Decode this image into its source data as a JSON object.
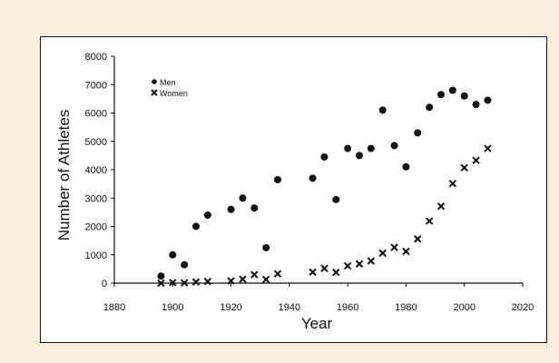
{
  "chart_data": {
    "type": "scatter",
    "title": "",
    "xlabel": "Year",
    "ylabel": "Number of Athletes",
    "xlim": [
      1880,
      2020
    ],
    "ylim": [
      0,
      8000
    ],
    "xticks": [
      1880,
      1900,
      1920,
      1940,
      1960,
      1980,
      2000,
      2020
    ],
    "yticks": [
      0,
      1000,
      2000,
      3000,
      4000,
      5000,
      6000,
      7000,
      8000
    ],
    "grid": false,
    "legend_position": "top-left",
    "series": [
      {
        "name": "Men",
        "marker": "circle",
        "color": "#111111",
        "x": [
          1896,
          1900,
          1904,
          1908,
          1912,
          1920,
          1924,
          1928,
          1932,
          1936,
          1948,
          1952,
          1956,
          1960,
          1964,
          1968,
          1972,
          1976,
          1980,
          1984,
          1988,
          1992,
          1996,
          2000,
          2004,
          2008
        ],
        "y": [
          250,
          1000,
          650,
          2000,
          2400,
          2600,
          3000,
          2650,
          1250,
          3650,
          3700,
          4450,
          2950,
          4750,
          4500,
          4750,
          6100,
          4850,
          4100,
          5300,
          6200,
          6650,
          6800,
          6600,
          6300,
          6450
        ]
      },
      {
        "name": "Women",
        "marker": "x",
        "color": "#111111",
        "x": [
          1896,
          1900,
          1904,
          1908,
          1912,
          1920,
          1924,
          1928,
          1932,
          1936,
          1948,
          1952,
          1956,
          1960,
          1964,
          1968,
          1972,
          1976,
          1980,
          1984,
          1988,
          1992,
          1996,
          2000,
          2004,
          2008
        ],
        "y": [
          0,
          20,
          10,
          40,
          60,
          80,
          140,
          300,
          130,
          330,
          390,
          520,
          380,
          610,
          680,
          780,
          1060,
          1260,
          1120,
          1560,
          2190,
          2710,
          3510,
          4070,
          4330,
          4750
        ]
      }
    ]
  }
}
